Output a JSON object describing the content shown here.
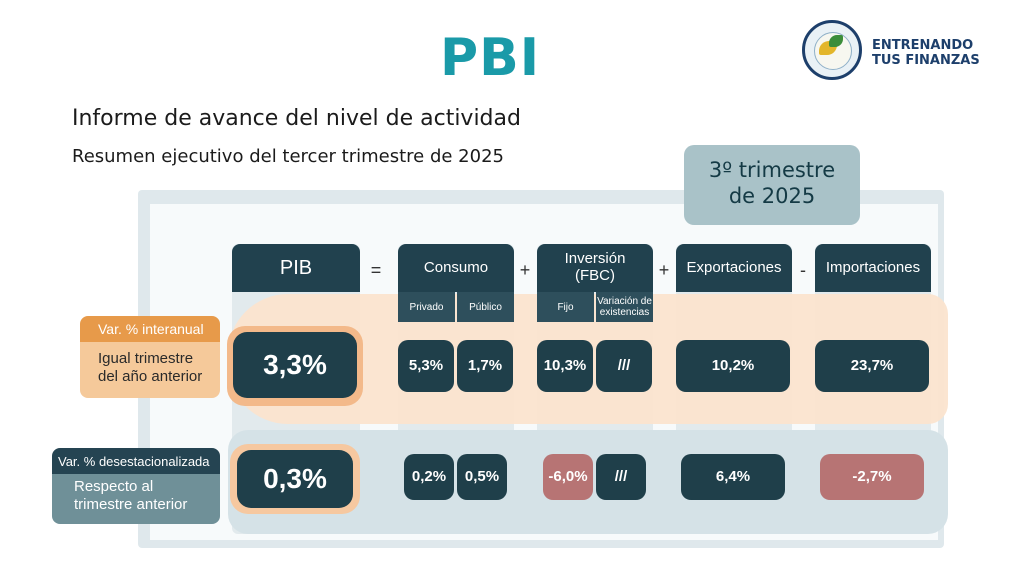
{
  "header": {
    "title": "PBI",
    "logo_line1": "ENTRENANDO",
    "logo_line2": "TUS FINANZAS"
  },
  "report": {
    "title": "Informe de avance del nivel de actividad",
    "subtitle": "Resumen ejecutivo del tercer trimestre de 2025",
    "quarter_line1": "3º trimestre",
    "quarter_line2": "de 2025"
  },
  "columns": {
    "pib": "PIB",
    "consumo": "Consumo",
    "inversion_line1": "Inversión",
    "inversion_line2": "(FBC)",
    "exportaciones": "Exportaciones",
    "importaciones": "Importaciones",
    "op_eq": "=",
    "op_plus1": "+",
    "op_plus2": "+",
    "op_minus": "-",
    "privado": "Privado",
    "publico": "Público",
    "fijo": "Fijo",
    "variacion_line1": "Variación de",
    "variacion_line2": "existencias"
  },
  "row_interanual": {
    "tag": "Var. % interanual",
    "desc_line1": "Igual trimestre",
    "desc_line2": "del año anterior",
    "pib": "3,3%",
    "privado": "5,3%",
    "publico": "1,7%",
    "fijo": "10,3%",
    "variacion": "///",
    "exportaciones": "10,2%",
    "importaciones": "23,7%"
  },
  "row_desest": {
    "tag": "Var. % desestacionalizada",
    "desc_line1": "Respecto al",
    "desc_line2": "trimestre anterior",
    "pib": "0,3%",
    "privado": "0,2%",
    "publico": "0,5%",
    "fijo": "-6,0%",
    "variacion": "///",
    "exportaciones": "6,4%",
    "importaciones": "-2,7%"
  },
  "colors": {
    "title": "#1a9aa8",
    "dark_cell": "#1f3f4a",
    "negative_cell": "#b77474",
    "orange": "#e79a4a"
  }
}
